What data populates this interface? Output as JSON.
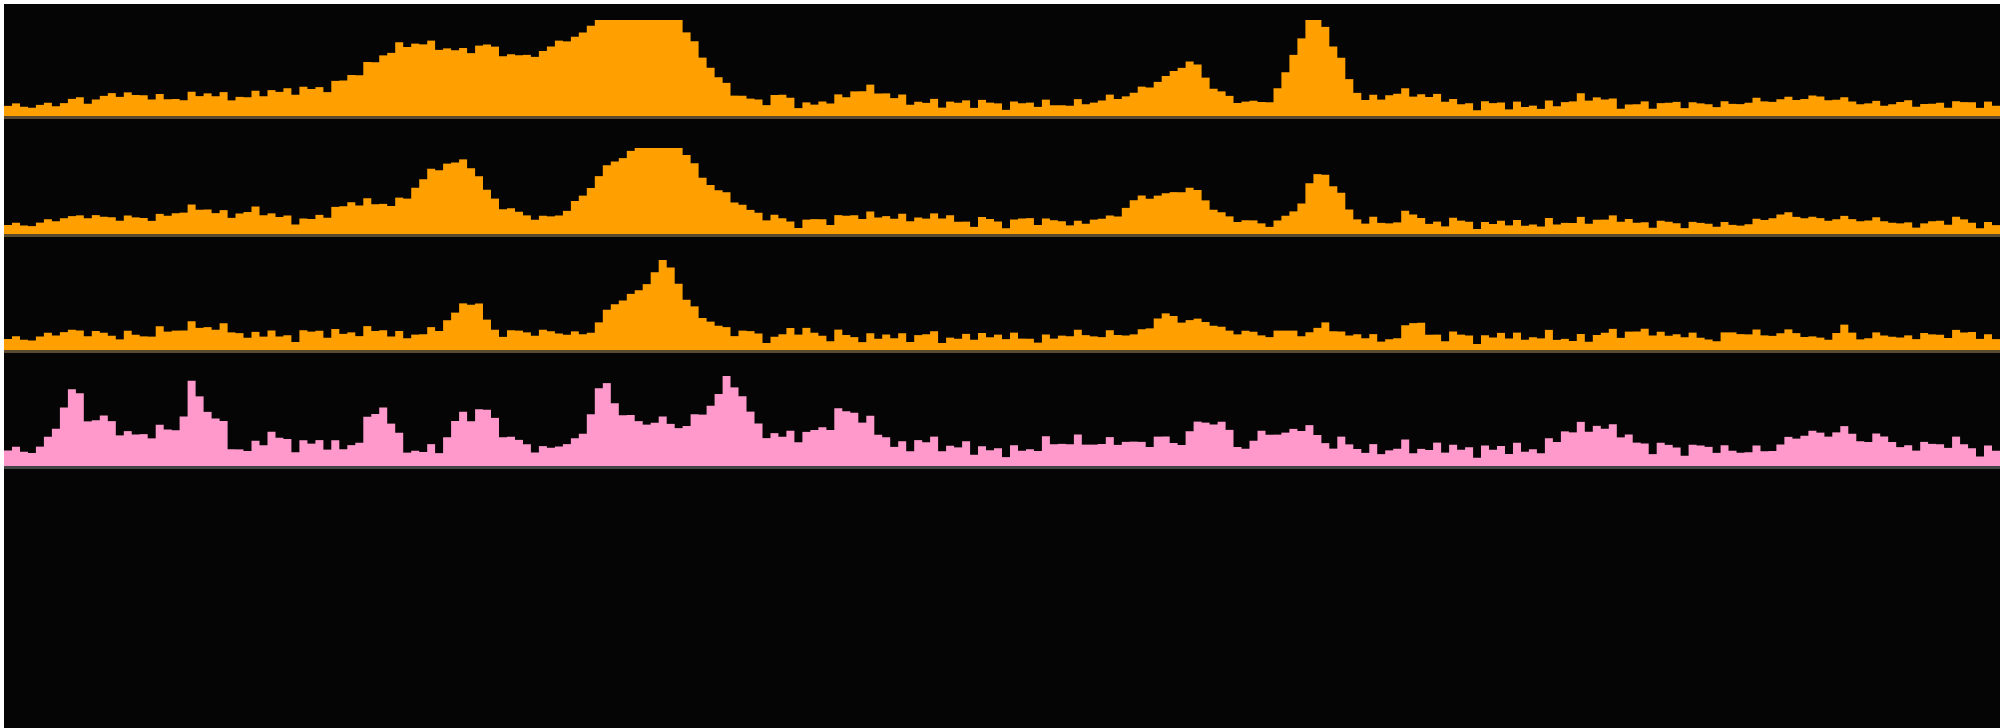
{
  "viewer": {
    "background": "#050505"
  },
  "chart_data": {
    "type": "area",
    "title": "",
    "xlabel": "",
    "ylabel": "",
    "grid": false,
    "legend": "none",
    "style": "step",
    "bins": 250,
    "series": [
      {
        "color": "#ffa000",
        "ylim": [
          0,
          100
        ],
        "peaks": [
          [
            0.03,
            0.3,
            1.5
          ],
          [
            0.036,
            0.4,
            1
          ],
          [
            0.055,
            1.2,
            2
          ],
          [
            0.068,
            0.3,
            1
          ],
          [
            0.074,
            0.6,
            1.5
          ],
          [
            0.09,
            0.5,
            2
          ],
          [
            0.1,
            0.3,
            1
          ],
          [
            0.105,
            0.7,
            3
          ],
          [
            0.129,
            0.3,
            1
          ],
          [
            0.133,
            0.7,
            3
          ],
          [
            0.148,
            0.4,
            2
          ],
          [
            0.17,
            0.2,
            1
          ],
          [
            0.178,
            1.2,
            7
          ],
          [
            0.196,
            1.5,
            4
          ],
          [
            0.22,
            4.5,
            7
          ],
          [
            0.242,
            2,
            2
          ],
          [
            0.262,
            2,
            2
          ],
          [
            0.276,
            1.5,
            1
          ],
          [
            0.3,
            4,
            5
          ],
          [
            0.31,
            5,
            6
          ],
          [
            0.32,
            2.5,
            3
          ],
          [
            0.326,
            3.5,
            2
          ],
          [
            0.344,
            3,
            3
          ],
          [
            0.37,
            0.3,
            1
          ],
          [
            0.385,
            0.7,
            1
          ],
          [
            0.39,
            0.5,
            1
          ],
          [
            0.412,
            0.3,
            1
          ],
          [
            0.427,
            0.4,
            1
          ],
          [
            0.433,
            1.4,
            3
          ],
          [
            0.46,
            0.2,
            1
          ],
          [
            0.475,
            0.3,
            2
          ],
          [
            0.49,
            0.3,
            1
          ],
          [
            0.51,
            0.3,
            1
          ],
          [
            0.52,
            0.2,
            1
          ],
          [
            0.54,
            0.3,
            2
          ],
          [
            0.555,
            0.6,
            1.5
          ],
          [
            0.57,
            0.4,
            1
          ],
          [
            0.58,
            2,
            3
          ],
          [
            0.594,
            3,
            2
          ],
          [
            0.61,
            0.5,
            1
          ],
          [
            0.62,
            0.4,
            1
          ],
          [
            0.64,
            0.3,
            1
          ],
          [
            0.655,
            8.5,
            2.5
          ],
          [
            0.67,
            0.6,
            1
          ],
          [
            0.7,
            1.3,
            3
          ],
          [
            0.72,
            0.5,
            1
          ],
          [
            0.745,
            0.3,
            1
          ],
          [
            0.79,
            0.8,
            2
          ],
          [
            0.8,
            0.3,
            1
          ],
          [
            0.82,
            0.2,
            1
          ],
          [
            0.835,
            0.3,
            1
          ],
          [
            0.85,
            0.2,
            1
          ],
          [
            0.88,
            0.5,
            3
          ],
          [
            0.9,
            0.4,
            2
          ],
          [
            0.915,
            0.6,
            3
          ],
          [
            0.95,
            0.3,
            2
          ],
          [
            0.98,
            0.3,
            2
          ]
        ]
      },
      {
        "color": "#ffa000",
        "ylim": [
          0,
          100
        ],
        "peaks": [
          [
            0.03,
            0.8,
            2
          ],
          [
            0.042,
            0.6,
            1
          ],
          [
            0.055,
            0.7,
            2
          ],
          [
            0.07,
            0.4,
            2
          ],
          [
            0.095,
            1.8,
            3
          ],
          [
            0.125,
            1.5,
            2
          ],
          [
            0.14,
            0.4,
            1
          ],
          [
            0.157,
            0.5,
            2
          ],
          [
            0.17,
            0.3,
            1
          ],
          [
            0.178,
            2.2,
            3
          ],
          [
            0.207,
            0.4,
            1
          ],
          [
            0.222,
            6.5,
            4
          ],
          [
            0.232,
            1,
            1
          ],
          [
            0.258,
            0.6,
            2
          ],
          [
            0.278,
            0.4,
            2
          ],
          [
            0.3,
            2.5,
            3
          ],
          [
            0.31,
            3,
            4
          ],
          [
            0.325,
            3.5,
            4
          ],
          [
            0.33,
            3,
            2
          ],
          [
            0.345,
            3.5,
            4
          ],
          [
            0.367,
            0.8,
            2
          ],
          [
            0.385,
            0.7,
            1
          ],
          [
            0.405,
            0.6,
            1
          ],
          [
            0.42,
            0.6,
            1
          ],
          [
            0.435,
            1,
            3
          ],
          [
            0.46,
            0.6,
            2
          ],
          [
            0.47,
            0.8,
            1
          ],
          [
            0.49,
            0.7,
            1
          ],
          [
            0.51,
            0.8,
            1
          ],
          [
            0.525,
            0.6,
            1
          ],
          [
            0.545,
            0.6,
            1
          ],
          [
            0.565,
            1.5,
            2
          ],
          [
            0.58,
            2.5,
            3
          ],
          [
            0.595,
            2.5,
            2
          ],
          [
            0.61,
            0.4,
            1
          ],
          [
            0.62,
            0.5,
            1
          ],
          [
            0.64,
            0.4,
            1
          ],
          [
            0.658,
            5.5,
            2
          ],
          [
            0.67,
            0.6,
            1
          ],
          [
            0.686,
            0.5,
            1
          ],
          [
            0.703,
            1.5,
            1
          ],
          [
            0.725,
            0.6,
            1
          ],
          [
            0.75,
            0.4,
            1
          ],
          [
            0.773,
            0.3,
            1
          ],
          [
            0.785,
            0.3,
            1
          ],
          [
            0.8,
            0.6,
            2
          ],
          [
            0.81,
            0.4,
            1
          ],
          [
            0.83,
            0.3,
            1
          ],
          [
            0.85,
            0.2,
            1
          ],
          [
            0.885,
            0.6,
            2
          ],
          [
            0.895,
            0.7,
            2
          ],
          [
            0.92,
            0.7,
            3
          ],
          [
            0.94,
            0.4,
            1
          ],
          [
            0.965,
            0.3,
            1
          ],
          [
            0.977,
            0.7,
            1
          ]
        ]
      },
      {
        "color": "#ffa000",
        "ylim": [
          0,
          100
        ],
        "peaks": [
          [
            0.03,
            0.7,
            2
          ],
          [
            0.045,
            0.5,
            1
          ],
          [
            0.06,
            0.5,
            1
          ],
          [
            0.075,
            0.6,
            1
          ],
          [
            0.09,
            0.9,
            2
          ],
          [
            0.103,
            0.7,
            2
          ],
          [
            0.112,
            0.5,
            1
          ],
          [
            0.13,
            0.7,
            1
          ],
          [
            0.15,
            0.4,
            1
          ],
          [
            0.16,
            0.5,
            2
          ],
          [
            0.18,
            0.6,
            2
          ],
          [
            0.187,
            0.4,
            1
          ],
          [
            0.207,
            0.4,
            2
          ],
          [
            0.228,
            2.5,
            2
          ],
          [
            0.235,
            1.5,
            1
          ],
          [
            0.255,
            0.6,
            2
          ],
          [
            0.275,
            0.6,
            2
          ],
          [
            0.305,
            2.5,
            2
          ],
          [
            0.315,
            1.5,
            2
          ],
          [
            0.328,
            4.5,
            2
          ],
          [
            0.333,
            2,
            2
          ],
          [
            0.35,
            1.5,
            2
          ],
          [
            0.37,
            0.7,
            1
          ],
          [
            0.393,
            0.8,
            1
          ],
          [
            0.402,
            0.6,
            1
          ],
          [
            0.418,
            0.5,
            1
          ],
          [
            0.44,
            0.4,
            1
          ],
          [
            0.46,
            0.5,
            1
          ],
          [
            0.485,
            0.4,
            1
          ],
          [
            0.5,
            0.4,
            1
          ],
          [
            0.53,
            0.4,
            1
          ],
          [
            0.54,
            0.5,
            1
          ],
          [
            0.555,
            0.6,
            1
          ],
          [
            0.58,
            2,
            2
          ],
          [
            0.6,
            1.5,
            2
          ],
          [
            0.62,
            0.7,
            1
          ],
          [
            0.635,
            0.6,
            1
          ],
          [
            0.645,
            0.7,
            1
          ],
          [
            0.66,
            1.5,
            1
          ],
          [
            0.675,
            0.5,
            1
          ],
          [
            0.705,
            1.8,
            1
          ],
          [
            0.725,
            0.5,
            1
          ],
          [
            0.75,
            0.5,
            1
          ],
          [
            0.77,
            0.4,
            1
          ],
          [
            0.8,
            0.5,
            1
          ],
          [
            0.815,
            0.6,
            2
          ],
          [
            0.825,
            0.4,
            1
          ],
          [
            0.84,
            0.5,
            1
          ],
          [
            0.865,
            0.6,
            1
          ],
          [
            0.875,
            0.5,
            1
          ],
          [
            0.885,
            0.4,
            1
          ],
          [
            0.895,
            0.7,
            1
          ],
          [
            0.92,
            1,
            1
          ],
          [
            0.94,
            0.5,
            1
          ],
          [
            0.96,
            0.5,
            1
          ],
          [
            0.975,
            0.6,
            1
          ],
          [
            0.985,
            0.5,
            1
          ]
        ]
      },
      {
        "color": "#ff99cc",
        "ylim": [
          0,
          100
        ],
        "peaks": [
          [
            0.03,
            2.5,
            1.5
          ],
          [
            0.035,
            1.6,
            1
          ],
          [
            0.045,
            0.8,
            1.5
          ],
          [
            0.048,
            1,
            1
          ],
          [
            0.055,
            0.5,
            1
          ],
          [
            0.07,
            1,
            3
          ],
          [
            0.08,
            0.6,
            1
          ],
          [
            0.092,
            3,
            1
          ],
          [
            0.097,
            1.5,
            1
          ],
          [
            0.105,
            1.8,
            1
          ],
          [
            0.13,
            0.7,
            1
          ],
          [
            0.135,
            0.5,
            1
          ],
          [
            0.15,
            0.4,
            2
          ],
          [
            0.16,
            0.3,
            1
          ],
          [
            0.184,
            2,
            1.5
          ],
          [
            0.19,
            1.2,
            1
          ],
          [
            0.225,
            1.3,
            1
          ],
          [
            0.238,
            2.5,
            2
          ],
          [
            0.258,
            0.4,
            1
          ],
          [
            0.279,
            0.5,
            1
          ],
          [
            0.298,
            4,
            1.5
          ],
          [
            0.31,
            1,
            1
          ],
          [
            0.324,
            1.8,
            2.5
          ],
          [
            0.357,
            3,
            3
          ],
          [
            0.362,
            1.5,
            1
          ],
          [
            0.37,
            1,
            1
          ],
          [
            0.382,
            0.7,
            1
          ],
          [
            0.393,
            1,
            1
          ],
          [
            0.404,
            0.9,
            1
          ],
          [
            0.42,
            2.5,
            2
          ],
          [
            0.432,
            0.8,
            1
          ],
          [
            0.44,
            0.6,
            1
          ],
          [
            0.457,
            0.6,
            1
          ],
          [
            0.466,
            0.4,
            1
          ],
          [
            0.48,
            0.3,
            1
          ],
          [
            0.52,
            0.4,
            1
          ],
          [
            0.535,
            0.6,
            2
          ],
          [
            0.558,
            0.6,
            2
          ],
          [
            0.577,
            0.8,
            1
          ],
          [
            0.6,
            1.8,
            2
          ],
          [
            0.61,
            0.6,
            1
          ],
          [
            0.63,
            1.2,
            1
          ],
          [
            0.648,
            1.5,
            2
          ],
          [
            0.67,
            0.5,
            1
          ],
          [
            0.7,
            0.3,
            1
          ],
          [
            0.72,
            0.3,
            1
          ],
          [
            0.75,
            0.2,
            1
          ],
          [
            0.78,
            0.5,
            1
          ],
          [
            0.795,
            1.5,
            3
          ],
          [
            0.81,
            0.4,
            1
          ],
          [
            0.83,
            0.3,
            1
          ],
          [
            0.85,
            0.3,
            1
          ],
          [
            0.9,
            1,
            2
          ],
          [
            0.92,
            1.2,
            2
          ],
          [
            0.94,
            1,
            1
          ],
          [
            0.96,
            0.5,
            1
          ],
          [
            0.975,
            0.7,
            1
          ]
        ]
      }
    ]
  }
}
